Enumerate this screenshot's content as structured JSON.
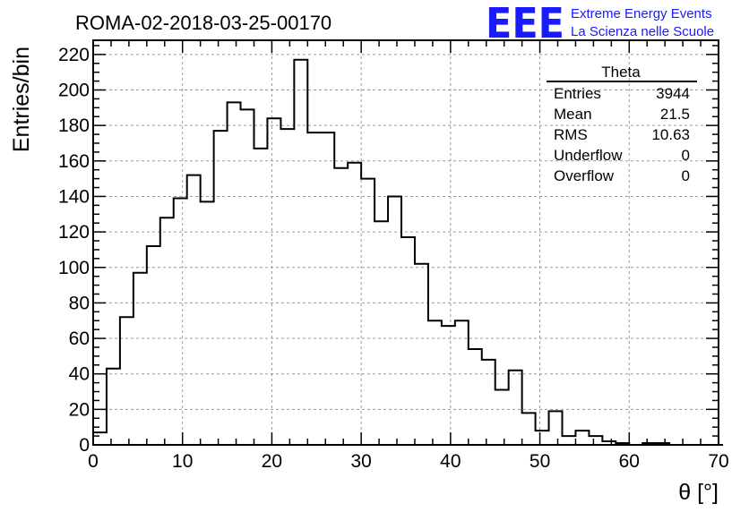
{
  "chart_data": {
    "type": "histogram",
    "title": "ROMA-02-2018-03-25-00170",
    "xlabel": "θ [°]",
    "ylabel": "Entries/bin",
    "xlim": [
      0,
      70
    ],
    "ylim": [
      0,
      228
    ],
    "x_ticks": [
      0,
      10,
      20,
      30,
      40,
      50,
      60,
      70
    ],
    "y_ticks": [
      0,
      20,
      40,
      60,
      80,
      100,
      120,
      140,
      160,
      180,
      200,
      220
    ],
    "grid": true,
    "bin_width": 1.5,
    "bin_edges_start": 0,
    "values": [
      7,
      43,
      72,
      97,
      112,
      128,
      139,
      152,
      137,
      177,
      193,
      189,
      167,
      184,
      178,
      217,
      176,
      176,
      156,
      159,
      150,
      126,
      140,
      117,
      102,
      70,
      67,
      70,
      54,
      48,
      31,
      42,
      18,
      8,
      19,
      5,
      8,
      5,
      2,
      1,
      0,
      1,
      1,
      0,
      0,
      0,
      0
    ],
    "stats_box": {
      "title": "Theta",
      "placement": "top-right",
      "rows": [
        {
          "label": "Entries",
          "value": "3944"
        },
        {
          "label": "Mean",
          "value": "21.5"
        },
        {
          "label": "RMS",
          "value": "10.63"
        },
        {
          "label": "Underflow",
          "value": "0"
        },
        {
          "label": "Overflow",
          "value": "0"
        }
      ]
    }
  },
  "logo": {
    "mark": "EEE",
    "line1": "Extreme Energy Events",
    "line2": "La Scienza nelle Scuole",
    "color": "#1a1aff"
  }
}
